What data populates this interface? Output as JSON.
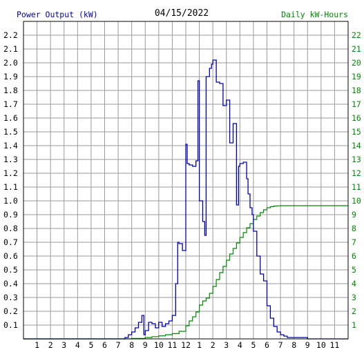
{
  "chart_data": {
    "type": "line",
    "title": "04/15/2022",
    "ylabel_left": "Power Output (kW)",
    "ylabel_right": "Daily kW-Hours",
    "x_tick_labels": [
      "1",
      "2",
      "3",
      "4",
      "5",
      "6",
      "7",
      "8",
      "9",
      "10",
      "11",
      "12",
      "1",
      "2",
      "3",
      "4",
      "5",
      "6",
      "7",
      "8",
      "9",
      "10",
      "11"
    ],
    "xlim": [
      0,
      24
    ],
    "ylim_left": [
      0,
      2.3
    ],
    "ylim_right": [
      0,
      23
    ],
    "y_ticks_left": [
      "0.1",
      "0.2",
      "0.3",
      "0.4",
      "0.5",
      "0.6",
      "0.7",
      "0.8",
      "0.9",
      "1.0",
      "1.1",
      "1.2",
      "1.3",
      "1.4",
      "1.5",
      "1.6",
      "1.7",
      "1.8",
      "1.9",
      "2.0",
      "2.1",
      "2.2"
    ],
    "y_ticks_right": [
      "1",
      "2",
      "3",
      "4",
      "5",
      "6",
      "7",
      "8",
      "9",
      "10",
      "11",
      "12",
      "13",
      "14",
      "15",
      "16",
      "17",
      "18",
      "19",
      "20",
      "21",
      "22"
    ],
    "grid": true,
    "colors": {
      "power": "#0000aa",
      "energy": "#008800",
      "grid": "#999999",
      "left_axis_text": "#0000aa",
      "right_axis_text": "#008800"
    },
    "series": [
      {
        "name": "Power Output (kW)",
        "axis": "left",
        "step": true,
        "x": [
          0,
          7.0,
          7.5,
          7.75,
          8.0,
          8.25,
          8.5,
          8.75,
          8.9,
          9.0,
          9.25,
          9.5,
          9.75,
          10.0,
          10.25,
          10.5,
          10.75,
          11.0,
          11.25,
          11.4,
          11.5,
          11.75,
          12.0,
          12.1,
          12.25,
          12.5,
          12.75,
          12.9,
          13.0,
          13.25,
          13.4,
          13.5,
          13.75,
          13.9,
          14.0,
          14.25,
          14.5,
          14.75,
          15.0,
          15.25,
          15.5,
          15.75,
          15.9,
          16.0,
          16.25,
          16.5,
          16.6,
          16.75,
          16.9,
          17.0,
          17.25,
          17.5,
          17.75,
          18.0,
          18.25,
          18.5,
          18.75,
          19.0,
          19.25,
          19.5,
          19.75,
          20.0,
          20.5,
          21.0,
          24.0
        ],
        "y": [
          0.0,
          0.0,
          0.01,
          0.03,
          0.05,
          0.08,
          0.12,
          0.17,
          0.03,
          0.06,
          0.12,
          0.11,
          0.08,
          0.12,
          0.09,
          0.11,
          0.13,
          0.17,
          0.4,
          0.7,
          0.69,
          0.64,
          1.41,
          1.27,
          1.26,
          1.25,
          1.29,
          1.87,
          1.0,
          0.85,
          0.75,
          1.9,
          1.96,
          1.99,
          2.02,
          1.86,
          1.85,
          1.69,
          1.73,
          1.42,
          1.56,
          0.97,
          1.25,
          1.27,
          1.28,
          1.16,
          1.05,
          0.95,
          0.9,
          0.78,
          0.6,
          0.47,
          0.42,
          0.24,
          0.15,
          0.09,
          0.05,
          0.03,
          0.02,
          0.01,
          0.01,
          0.01,
          0.01,
          0.0,
          0.0
        ]
      },
      {
        "name": "Daily kW-Hours",
        "axis": "right",
        "step": true,
        "x": [
          0,
          7.0,
          8.0,
          9.0,
          9.5,
          10.0,
          10.5,
          11.0,
          11.5,
          12.0,
          12.25,
          12.5,
          12.75,
          13.0,
          13.25,
          13.5,
          13.75,
          14.0,
          14.25,
          14.5,
          14.75,
          15.0,
          15.25,
          15.5,
          15.75,
          16.0,
          16.25,
          16.5,
          16.75,
          17.0,
          17.25,
          17.5,
          17.75,
          18.0,
          18.25,
          18.5,
          18.75,
          19.0,
          19.5,
          20.0,
          21.0,
          24.0
        ],
        "y": [
          0.0,
          0.0,
          0.03,
          0.1,
          0.16,
          0.22,
          0.3,
          0.38,
          0.55,
          0.95,
          1.3,
          1.6,
          1.95,
          2.45,
          2.75,
          2.95,
          3.3,
          3.8,
          4.3,
          4.8,
          5.25,
          5.7,
          6.15,
          6.55,
          6.95,
          7.35,
          7.7,
          8.05,
          8.35,
          8.65,
          8.9,
          9.15,
          9.35,
          9.5,
          9.58,
          9.62,
          9.64,
          9.65,
          9.65,
          9.65,
          9.65,
          9.65
        ]
      }
    ]
  }
}
